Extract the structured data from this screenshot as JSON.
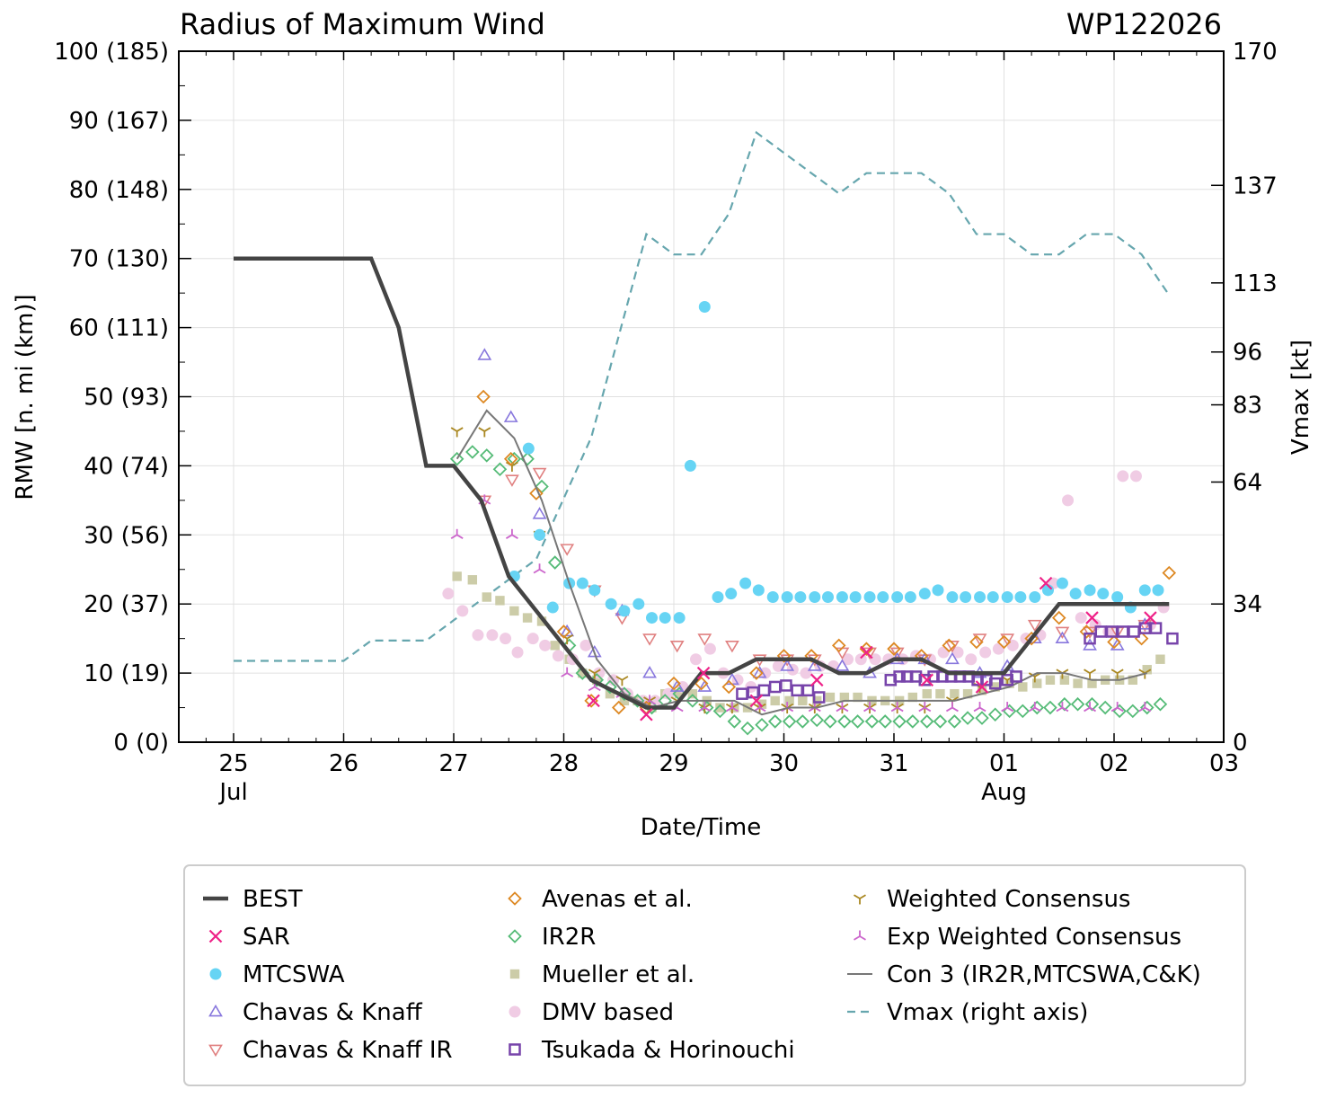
{
  "chart_data": {
    "type": "scatter",
    "title": "Radius of Maximum Wind",
    "storm_id": "WP122026",
    "xlabel": "Date/Time",
    "ylabel": "RMW [n. mi (km)]",
    "y2label": "Vmax [kt]",
    "xlim": [
      -0.5,
      9.0
    ],
    "ylim": [
      0,
      100
    ],
    "y2lim": [
      0,
      170
    ],
    "grid": true,
    "legend_position": "bottom",
    "x_ticks": [
      {
        "value": 0,
        "label": "25",
        "sub": "Jul"
      },
      {
        "value": 1,
        "label": "26",
        "sub": ""
      },
      {
        "value": 2,
        "label": "27",
        "sub": ""
      },
      {
        "value": 3,
        "label": "28",
        "sub": ""
      },
      {
        "value": 4,
        "label": "29",
        "sub": ""
      },
      {
        "value": 5,
        "label": "30",
        "sub": ""
      },
      {
        "value": 6,
        "label": "31",
        "sub": ""
      },
      {
        "value": 7,
        "label": "01",
        "sub": "Aug"
      },
      {
        "value": 8,
        "label": "02",
        "sub": ""
      },
      {
        "value": 9,
        "label": "03",
        "sub": ""
      }
    ],
    "y_ticks": [
      {
        "value": 0,
        "label": "0 (0)"
      },
      {
        "value": 10,
        "label": "10 (19)"
      },
      {
        "value": 20,
        "label": "20 (37)"
      },
      {
        "value": 30,
        "label": "30 (56)"
      },
      {
        "value": 40,
        "label": "40 (74)"
      },
      {
        "value": 50,
        "label": "50 (93)"
      },
      {
        "value": 60,
        "label": "60 (111)"
      },
      {
        "value": 70,
        "label": "70 (130)"
      },
      {
        "value": 80,
        "label": "80 (148)"
      },
      {
        "value": 90,
        "label": "90 (167)"
      },
      {
        "value": 100,
        "label": "100 (185)"
      }
    ],
    "y2_ticks": [
      {
        "value": 0,
        "label": "0"
      },
      {
        "value": 34,
        "label": "34"
      },
      {
        "value": 64,
        "label": "64"
      },
      {
        "value": 83,
        "label": "83"
      },
      {
        "value": 96,
        "label": "96"
      },
      {
        "value": 113,
        "label": "113"
      },
      {
        "value": 137,
        "label": "137"
      },
      {
        "value": 170,
        "label": "170"
      }
    ],
    "series": [
      {
        "name": "BEST",
        "marker": "line-thick",
        "color": "#444444",
        "x": [
          0,
          0.25,
          0.5,
          0.75,
          1,
          1.25,
          1.5,
          1.75,
          2,
          2.25,
          2.5,
          2.75,
          3,
          3.25,
          3.5,
          3.75,
          4,
          4.25,
          4.5,
          4.75,
          5,
          5.25,
          5.5,
          5.75,
          6,
          6.25,
          6.5,
          6.75,
          7,
          7.25,
          7.5,
          7.75,
          8,
          8.25,
          8.5
        ],
        "y": [
          70,
          70,
          70,
          70,
          70,
          70,
          60,
          40,
          40,
          35,
          24,
          19,
          14,
          9,
          7,
          5,
          5,
          10,
          10,
          12,
          12,
          12,
          10,
          10,
          12,
          12,
          10,
          10,
          10,
          15,
          20,
          20,
          20,
          20,
          20
        ]
      },
      {
        "name": "SAR",
        "marker": "x",
        "color": "#ee2288",
        "x": [
          3.27,
          3.75,
          4.27,
          4.75,
          5.3,
          5.75,
          6.3,
          6.8,
          7.38,
          7.8,
          8.33
        ],
        "y": [
          6,
          4,
          10,
          6,
          9,
          13,
          9,
          8,
          23,
          18,
          18
        ]
      },
      {
        "name": "MTCSWA",
        "marker": "dot",
        "color": "#66d4f4",
        "x": [
          2.55,
          2.68,
          2.78,
          2.9,
          3.05,
          3.17,
          3.28,
          3.43,
          3.55,
          3.68,
          3.8,
          3.92,
          4.05,
          4.15,
          4.28,
          4.4,
          4.52,
          4.65,
          4.77,
          4.9,
          5.03,
          5.15,
          5.28,
          5.4,
          5.53,
          5.65,
          5.78,
          5.9,
          6.03,
          6.15,
          6.28,
          6.4,
          6.53,
          6.65,
          6.78,
          6.9,
          7.03,
          7.15,
          7.28,
          7.4,
          7.53,
          7.65,
          7.78,
          7.9,
          8.03,
          8.15,
          8.28,
          8.4
        ],
        "y": [
          24,
          42.5,
          30,
          19.5,
          23,
          23,
          22,
          20,
          19,
          20,
          18,
          18,
          18,
          40,
          63,
          21,
          21.5,
          23,
          22,
          21,
          21,
          21,
          21,
          21,
          21,
          21,
          21,
          21,
          21,
          21,
          21.5,
          22,
          21,
          21,
          21,
          21,
          21,
          21,
          21,
          22,
          23,
          21.5,
          22,
          21.5,
          21,
          19.5,
          22,
          22
        ]
      },
      {
        "name": "Chavas & Knaff",
        "marker": "triangle-up",
        "color": "#8877dd",
        "x": [
          2.28,
          2.52,
          2.78,
          3.03,
          3.28,
          3.53,
          3.78,
          4.03,
          4.28,
          4.53,
          4.78,
          5.03,
          5.28,
          5.53,
          5.78,
          6.03,
          6.28,
          6.53,
          6.78,
          7.03,
          7.28,
          7.53,
          7.78,
          8.03,
          8.28
        ],
        "y": [
          56,
          47,
          33,
          16,
          13,
          19,
          10,
          8,
          8,
          9,
          10,
          11,
          11,
          11,
          10,
          12,
          12,
          12,
          10,
          11,
          15,
          15,
          14,
          14,
          17
        ]
      },
      {
        "name": "Chavas & Knaff IR",
        "marker": "triangle-down",
        "color": "#e08080",
        "x": [
          2.28,
          2.53,
          2.78,
          3.03,
          3.28,
          3.53,
          3.78,
          4.03,
          4.28,
          4.53,
          4.78,
          5.03,
          5.28,
          5.53,
          5.78,
          6.03,
          6.28,
          6.53,
          6.78,
          7.03,
          7.28,
          7.53,
          7.78,
          8.03,
          8.28
        ],
        "y": [
          35,
          38,
          39,
          28,
          22,
          18,
          15,
          14,
          15,
          14,
          12,
          12,
          12,
          13,
          13,
          13,
          12,
          14,
          15,
          15,
          17,
          16,
          16,
          16,
          17
        ]
      },
      {
        "name": "Avenas et al.",
        "marker": "diamond",
        "color": "#dd8822",
        "x": [
          2.27,
          2.52,
          2.75,
          3.0,
          3.25,
          3.5,
          3.75,
          4.0,
          4.25,
          4.5,
          4.75,
          5.0,
          5.25,
          5.5,
          5.75,
          6.0,
          6.25,
          6.5,
          6.75,
          7.0,
          7.25,
          7.5,
          7.75,
          8.0,
          8.25,
          8.5
        ],
        "y": [
          50,
          41,
          36,
          16,
          6,
          5,
          5,
          8.5,
          8.5,
          8,
          10,
          12.5,
          12.5,
          14,
          13.5,
          13.5,
          12.5,
          14,
          14.5,
          14.5,
          15,
          18,
          16,
          14.5,
          15,
          24.5
        ]
      },
      {
        "name": "IR2R",
        "marker": "diamond",
        "color": "#55bb77",
        "x": [
          2.03,
          2.17,
          2.3,
          2.42,
          2.55,
          2.67,
          2.8,
          2.92,
          3.05,
          3.17,
          3.3,
          3.42,
          3.55,
          3.67,
          3.8,
          3.92,
          4.05,
          4.17,
          4.3,
          4.42,
          4.55,
          4.67,
          4.8,
          4.92,
          5.05,
          5.17,
          5.3,
          5.42,
          5.55,
          5.67,
          5.8,
          5.92,
          6.05,
          6.17,
          6.3,
          6.42,
          6.55,
          6.67,
          6.8,
          6.92,
          7.05,
          7.17,
          7.3,
          7.42,
          7.55,
          7.67,
          7.8,
          7.92,
          8.05,
          8.17,
          8.3,
          8.42
        ],
        "y": [
          41,
          42,
          41.5,
          39.5,
          41,
          41,
          37,
          26,
          14,
          10,
          9,
          8,
          7,
          6,
          5,
          6,
          7,
          6,
          5,
          4.5,
          3,
          2,
          2.5,
          3,
          3,
          3,
          3.2,
          3,
          3,
          3,
          3,
          3,
          3,
          3,
          3,
          3,
          3,
          3.5,
          3.5,
          4,
          4.5,
          4.5,
          5,
          5,
          5.5,
          5.5,
          5.5,
          5,
          4.5,
          4.5,
          5,
          5.5
        ]
      },
      {
        "name": "Mueller et al.",
        "marker": "square-filled",
        "color": "#cccca8",
        "x": [
          2.03,
          2.17,
          2.3,
          2.42,
          2.55,
          2.67,
          2.8,
          2.92,
          3.05,
          3.17,
          3.3,
          3.42,
          3.55,
          3.67,
          3.8,
          3.92,
          4.05,
          4.17,
          4.3,
          4.42,
          4.55,
          4.67,
          4.8,
          4.92,
          5.05,
          5.17,
          5.3,
          5.42,
          5.55,
          5.67,
          5.8,
          5.92,
          6.05,
          6.17,
          6.3,
          6.42,
          6.55,
          6.67,
          6.8,
          6.92,
          7.05,
          7.17,
          7.3,
          7.42,
          7.55,
          7.67,
          7.8,
          7.92,
          8.05,
          8.17,
          8.3,
          8.42
        ],
        "y": [
          24,
          23.5,
          21,
          20.5,
          19,
          18,
          17.5,
          14,
          12,
          10,
          9,
          7,
          6,
          6,
          5,
          7,
          7,
          7,
          6,
          5,
          5,
          5,
          5.5,
          6,
          6,
          6,
          6,
          6.5,
          6.5,
          6.5,
          6,
          6,
          6,
          6.5,
          7,
          7,
          7,
          7,
          7.5,
          8,
          8.5,
          8,
          8.5,
          9,
          9,
          8.5,
          8.5,
          9,
          9,
          9,
          10.5,
          12
        ]
      },
      {
        "name": "DMV based",
        "marker": "dot",
        "color": "#f0cce4",
        "x": [
          1.95,
          2.08,
          2.22,
          2.35,
          2.47,
          2.58,
          2.72,
          2.83,
          2.95,
          3.08,
          3.2,
          3.32,
          3.45,
          3.58,
          3.72,
          3.83,
          3.95,
          4.08,
          4.2,
          4.33,
          4.45,
          4.58,
          4.7,
          4.83,
          4.95,
          5.08,
          5.2,
          5.33,
          5.45,
          5.58,
          5.7,
          5.83,
          5.95,
          6.08,
          6.2,
          6.33,
          6.45,
          6.58,
          6.7,
          6.83,
          6.95,
          7.08,
          7.2,
          7.33,
          7.45,
          7.58,
          7.7,
          7.83,
          7.95,
          8.08,
          8.2,
          8.33,
          8.45
        ],
        "y": [
          21.5,
          19,
          15.5,
          15.5,
          15,
          13,
          15,
          14,
          12.5,
          12,
          14,
          10,
          9,
          7,
          6,
          6,
          7,
          8,
          12,
          13.5,
          10,
          9,
          8,
          10,
          11,
          10.5,
          10,
          11,
          11,
          12,
          12,
          12,
          12,
          12,
          12.5,
          12,
          13,
          13,
          12,
          13,
          13.5,
          14,
          15,
          15.5,
          23,
          35,
          18,
          17,
          16,
          38.5,
          38.5,
          17,
          19.5
        ]
      },
      {
        "name": "Tsukada & Horinouchi",
        "marker": "square-open",
        "color": "#7744aa",
        "x": [
          4.62,
          4.72,
          4.82,
          4.92,
          5.02,
          5.12,
          5.22,
          5.32,
          5.97,
          6.05,
          6.12,
          6.2,
          6.28,
          6.36,
          6.44,
          6.52,
          6.6,
          6.68,
          6.76,
          6.84,
          6.92,
          7.03,
          7.11,
          7.78,
          7.88,
          7.98,
          8.08,
          8.18,
          8.28,
          8.38,
          8.53
        ],
        "y": [
          7,
          7.2,
          7.5,
          8,
          8.2,
          7.5,
          7.5,
          6.5,
          9,
          9.5,
          9.5,
          9.5,
          9,
          9.5,
          9.5,
          9.5,
          9.5,
          9.5,
          9,
          9,
          8.5,
          9,
          9.5,
          15,
          16,
          16,
          16,
          16,
          16.5,
          16.5,
          15
        ]
      },
      {
        "name": "Weighted Consensus",
        "marker": "tri-down",
        "color": "#aa8822",
        "x": [
          2.03,
          2.28,
          2.53,
          2.78,
          3.03,
          3.28,
          3.53,
          3.78,
          4.03,
          4.28,
          4.53,
          4.78,
          5.03,
          5.28,
          5.53,
          5.78,
          6.03,
          6.28,
          6.53,
          6.78,
          7.03,
          7.28,
          7.53,
          7.78,
          8.03,
          8.28
        ],
        "y": [
          45,
          45,
          40,
          30,
          15,
          10,
          9,
          6,
          6,
          5,
          5,
          5,
          5,
          5,
          5,
          5,
          5,
          5,
          6,
          8,
          9,
          9.5,
          10,
          10,
          10,
          10
        ]
      },
      {
        "name": "Exp Weighted Consensus",
        "marker": "tri-up",
        "color": "#cc66cc",
        "x": [
          2.03,
          2.28,
          2.53,
          2.78,
          3.03,
          3.28,
          3.53,
          3.78,
          4.03,
          4.28,
          4.53,
          4.78,
          5.03,
          5.28,
          5.53,
          5.78,
          6.03,
          6.28,
          6.53,
          6.78,
          7.03,
          7.28,
          7.53,
          7.78,
          8.03,
          8.28
        ],
        "y": [
          30,
          35,
          30,
          25,
          10,
          8,
          7,
          6,
          5,
          5,
          5,
          5,
          5,
          5,
          5,
          5,
          5,
          5,
          5,
          5,
          5,
          5,
          5,
          5,
          5,
          5
        ]
      },
      {
        "name": "Con 3 (IR2R,MTCSWA,C&K)",
        "marker": "line-thin",
        "color": "#777777",
        "x": [
          2.03,
          2.3,
          2.55,
          2.8,
          3.05,
          3.3,
          3.55,
          3.8,
          4.05,
          4.3,
          4.55,
          4.8,
          5.05,
          5.3,
          5.55,
          5.8,
          6.05,
          6.3,
          6.55,
          6.8,
          7.05,
          7.3,
          7.55,
          7.8,
          8.05,
          8.3
        ],
        "y": [
          41,
          48,
          44,
          35,
          23,
          12,
          7,
          5,
          6,
          6,
          6,
          4,
          5,
          5,
          6,
          6,
          6,
          6,
          6,
          7,
          8,
          10,
          10,
          9,
          9,
          10
        ]
      },
      {
        "name": "Vmax (right axis)",
        "marker": "line-dashed",
        "color": "#66a6ae",
        "axis": "right",
        "x": [
          0,
          0.25,
          0.5,
          0.75,
          1,
          1.25,
          1.5,
          1.75,
          2,
          2.25,
          2.5,
          2.75,
          3,
          3.25,
          3.5,
          3.75,
          4,
          4.25,
          4.5,
          4.75,
          5,
          5.25,
          5.5,
          5.75,
          6,
          6.25,
          6.5,
          6.75,
          7,
          7.25,
          7.5,
          7.75,
          8,
          8.25,
          8.5
        ],
        "y": [
          20,
          20,
          20,
          20,
          20,
          25,
          25,
          25,
          30,
          35,
          40,
          45,
          60,
          75,
          100,
          125,
          120,
          120,
          130,
          150,
          145,
          140,
          135,
          140,
          140,
          140,
          135,
          125,
          125,
          120,
          120,
          125,
          125,
          120,
          110
        ]
      }
    ]
  }
}
